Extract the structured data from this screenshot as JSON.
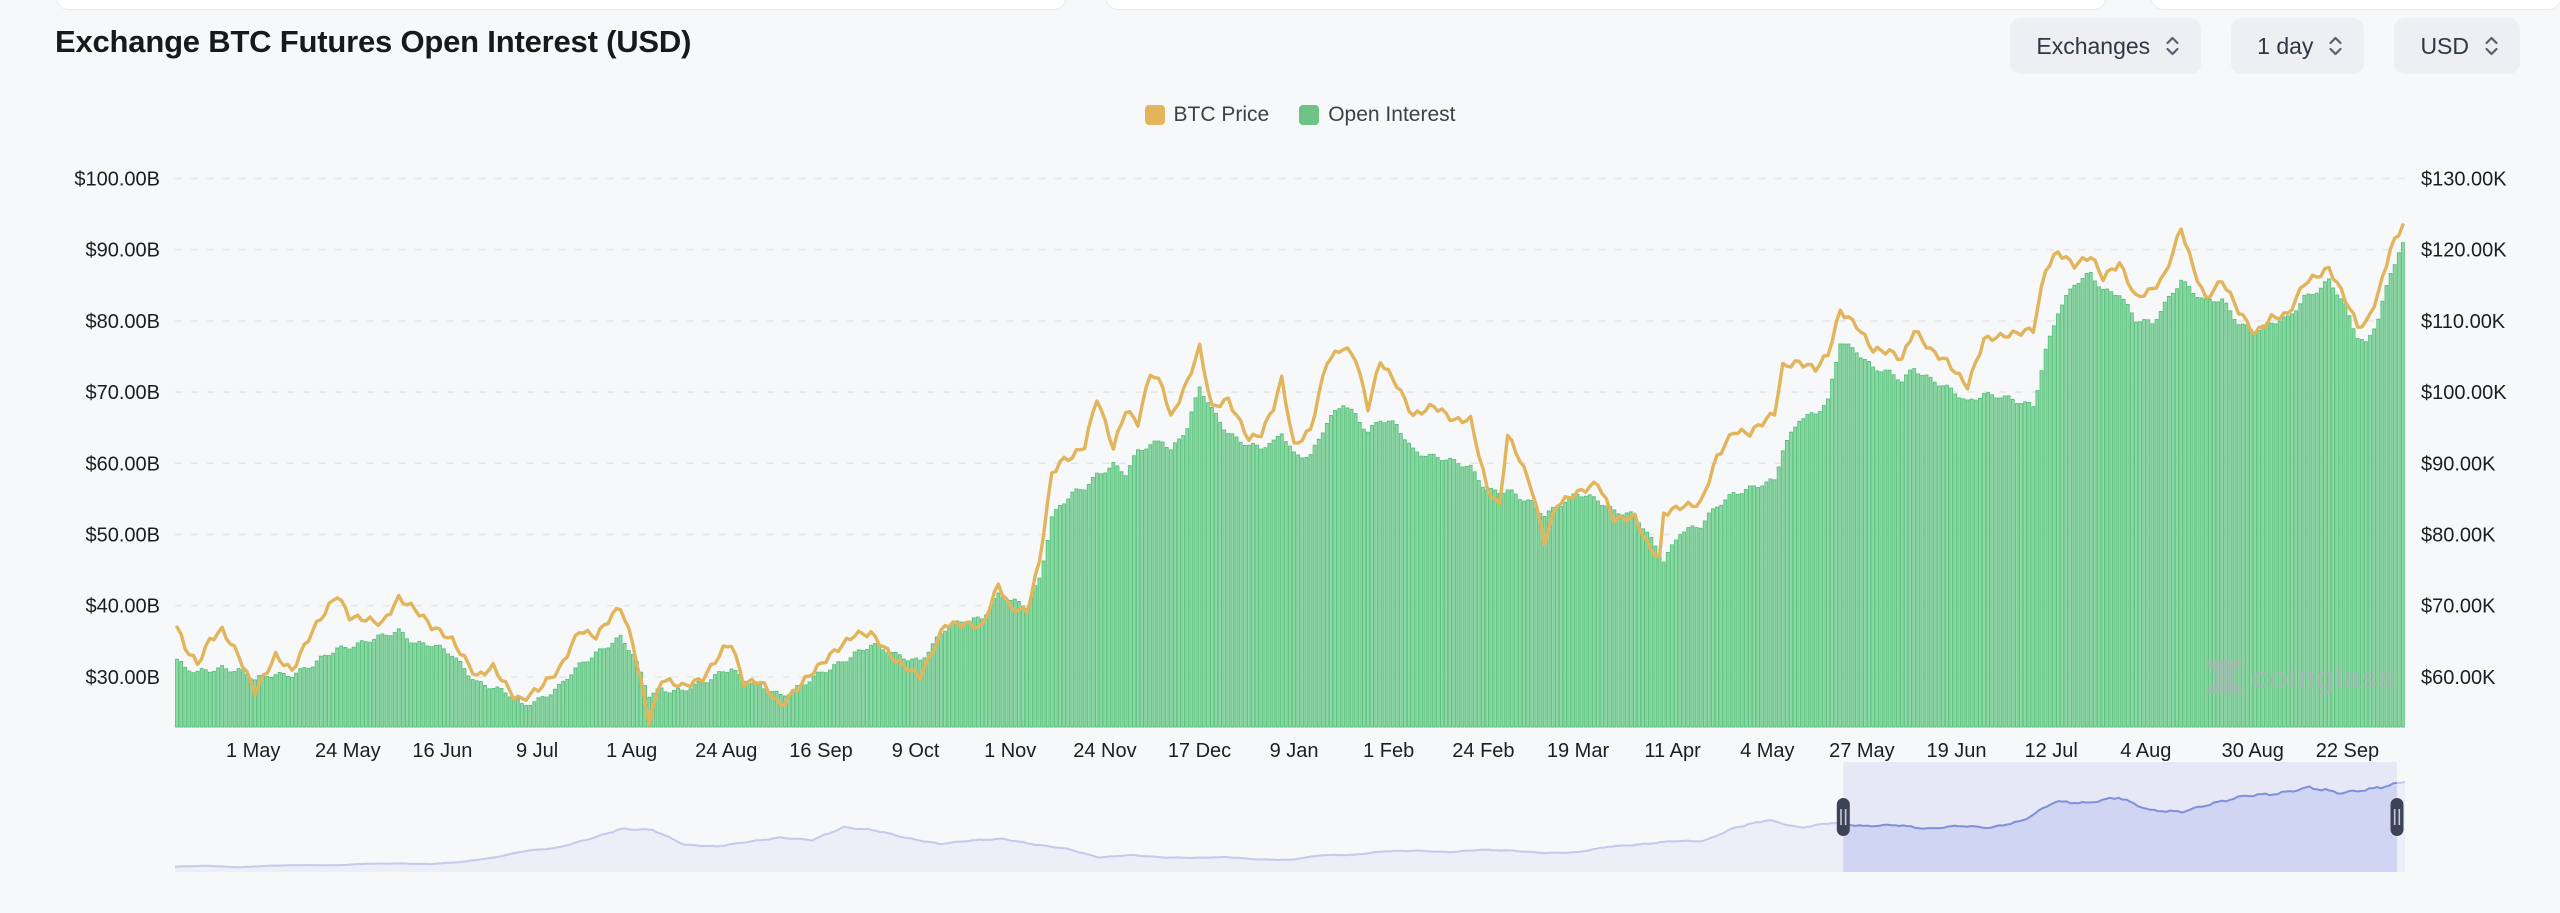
{
  "header": {
    "title": "Exchange BTC Futures Open Interest (USD)"
  },
  "controls": {
    "exchanges_label": "Exchanges",
    "timeframe_label": "1 day",
    "currency_label": "USD"
  },
  "legend": {
    "items": [
      {
        "label": "BTC Price",
        "color": "#e2b45c"
      },
      {
        "label": "Open Interest",
        "color": "#6ec487"
      }
    ]
  },
  "watermark": {
    "text": "coinglass"
  },
  "chart_data": {
    "type": "mixed",
    "title": "Exchange BTC Futures Open Interest (USD)",
    "grid": "dashed horizontal gridlines on",
    "legend_position": "top center",
    "left_axis": {
      "series": "Open Interest",
      "unit": "USD billions",
      "tick_labels": [
        "$100.00B",
        "$90.00B",
        "$80.00B",
        "$70.00B",
        "$60.00B",
        "$50.00B",
        "$40.00B",
        "$30.00B"
      ],
      "tick_values": [
        100,
        90,
        80,
        70,
        60,
        50,
        40,
        30
      ],
      "baseline_value": 23
    },
    "right_axis": {
      "series": "BTC Price",
      "unit": "USD thousands",
      "tick_labels": [
        "$130.00K",
        "$120.00K",
        "$110.00K",
        "$100.00K",
        "$90.00K",
        "$80.00K",
        "$70.00K",
        "$60.00K"
      ],
      "tick_values": [
        130,
        120,
        110,
        100,
        90,
        80,
        70,
        60
      ],
      "baseline_value": 53
    },
    "x_ticks": [
      {
        "label": "1 May",
        "date": "2024-05-01"
      },
      {
        "label": "24 May",
        "date": "2024-05-24"
      },
      {
        "label": "16 Jun",
        "date": "2024-06-16"
      },
      {
        "label": "9 Jul",
        "date": "2024-07-09"
      },
      {
        "label": "1 Aug",
        "date": "2024-08-01"
      },
      {
        "label": "24 Aug",
        "date": "2024-08-24"
      },
      {
        "label": "16 Sep",
        "date": "2024-09-16"
      },
      {
        "label": "9 Oct",
        "date": "2024-10-09"
      },
      {
        "label": "1 Nov",
        "date": "2024-11-01"
      },
      {
        "label": "24 Nov",
        "date": "2024-11-24"
      },
      {
        "label": "17 Dec",
        "date": "2024-12-17"
      },
      {
        "label": "9 Jan",
        "date": "2025-01-09"
      },
      {
        "label": "1 Feb",
        "date": "2025-02-01"
      },
      {
        "label": "24 Feb",
        "date": "2025-02-24"
      },
      {
        "label": "19 Mar",
        "date": "2025-03-19"
      },
      {
        "label": "11 Apr",
        "date": "2025-04-11"
      },
      {
        "label": "4 May",
        "date": "2025-05-04"
      },
      {
        "label": "27 May",
        "date": "2025-05-27"
      },
      {
        "label": "19 Jun",
        "date": "2025-06-19"
      },
      {
        "label": "12 Jul",
        "date": "2025-07-12"
      },
      {
        "label": "4 Aug",
        "date": "2025-08-04"
      },
      {
        "label": "30 Aug",
        "date": "2025-08-30"
      },
      {
        "label": "22 Sep",
        "date": "2025-09-22"
      }
    ],
    "series": [
      {
        "name": "BTC Price",
        "type": "line",
        "axis": "right",
        "color": "#e2b45c",
        "unit": "K USD"
      },
      {
        "name": "Open Interest",
        "type": "bar",
        "axis": "left",
        "color": "#6ec487",
        "stroke": "#58bf7d",
        "unit": "B USD"
      }
    ],
    "dates": [
      "2024-04-12",
      "2024-04-14",
      "2024-04-17",
      "2024-04-20",
      "2024-04-23",
      "2024-04-27",
      "2024-05-01",
      "2024-05-06",
      "2024-05-10",
      "2024-05-15",
      "2024-05-21",
      "2024-05-24",
      "2024-05-28",
      "2024-06-01",
      "2024-06-05",
      "2024-06-09",
      "2024-06-13",
      "2024-06-18",
      "2024-06-24",
      "2024-06-28",
      "2024-07-03",
      "2024-07-05",
      "2024-07-09",
      "2024-07-14",
      "2024-07-19",
      "2024-07-23",
      "2024-07-27",
      "2024-07-29",
      "2024-08-01",
      "2024-08-05",
      "2024-08-08",
      "2024-08-13",
      "2024-08-18",
      "2024-08-23",
      "2024-08-25",
      "2024-08-28",
      "2024-09-01",
      "2024-09-06",
      "2024-09-13",
      "2024-09-18",
      "2024-09-24",
      "2024-09-28",
      "2024-10-04",
      "2024-10-10",
      "2024-10-16",
      "2024-10-21",
      "2024-10-25",
      "2024-10-29",
      "2024-11-01",
      "2024-11-05",
      "2024-11-08",
      "2024-11-11",
      "2024-11-13",
      "2024-11-16",
      "2024-11-19",
      "2024-11-22",
      "2024-11-26",
      "2024-11-29",
      "2024-12-02",
      "2024-12-05",
      "2024-12-08",
      "2024-12-10",
      "2024-12-14",
      "2024-12-17",
      "2024-12-20",
      "2024-12-24",
      "2024-12-29",
      "2025-01-01",
      "2025-01-04",
      "2025-01-06",
      "2025-01-09",
      "2025-01-13",
      "2025-01-17",
      "2025-01-21",
      "2025-01-24",
      "2025-01-27",
      "2025-01-30",
      "2025-02-03",
      "2025-02-07",
      "2025-02-12",
      "2025-02-17",
      "2025-02-21",
      "2025-02-25",
      "2025-02-28",
      "2025-03-02",
      "2025-03-05",
      "2025-03-08",
      "2025-03-11",
      "2025-03-14",
      "2025-03-19",
      "2025-03-24",
      "2025-03-28",
      "2025-04-02",
      "2025-04-05",
      "2025-04-08",
      "2025-04-09",
      "2025-04-13",
      "2025-04-18",
      "2025-04-22",
      "2025-04-26",
      "2025-04-30",
      "2025-05-04",
      "2025-05-06",
      "2025-05-08",
      "2025-05-12",
      "2025-05-16",
      "2025-05-19",
      "2025-05-22",
      "2025-05-26",
      "2025-05-30",
      "2025-06-03",
      "2025-06-06",
      "2025-06-09",
      "2025-06-13",
      "2025-06-17",
      "2025-06-22",
      "2025-06-26",
      "2025-06-30",
      "2025-07-04",
      "2025-07-08",
      "2025-07-11",
      "2025-07-14",
      "2025-07-18",
      "2025-07-22",
      "2025-07-25",
      "2025-07-29",
      "2025-08-02",
      "2025-08-06",
      "2025-08-09",
      "2025-08-13",
      "2025-08-16",
      "2025-08-19",
      "2025-08-23",
      "2025-08-27",
      "2025-08-31",
      "2025-09-04",
      "2025-09-08",
      "2025-09-12",
      "2025-09-16",
      "2025-09-18",
      "2025-09-22",
      "2025-09-25",
      "2025-09-27",
      "2025-09-30",
      "2025-10-03",
      "2025-10-06"
    ],
    "btc_price_k": [
      67,
      64,
      61.5,
      64.9,
      66.4,
      63.1,
      58.2,
      63.2,
      60.8,
      66.2,
      71.4,
      68.5,
      68.4,
      67.8,
      71.1,
      69.3,
      66.8,
      65.1,
      60.3,
      61.7,
      57.3,
      56.6,
      58,
      60.8,
      66.7,
      66,
      68.9,
      69.9,
      64.6,
      53.4,
      59.4,
      58.7,
      60,
      64.1,
      64.8,
      59,
      59.1,
      55.7,
      60.5,
      63.3,
      65.9,
      65.8,
      62.1,
      60.3,
      67.6,
      67.4,
      66.7,
      72.7,
      69.5,
      69.4,
      76.5,
      88.7,
      90.4,
      91,
      92.3,
      98.9,
      91.9,
      97.4,
      95.8,
      103,
      101.2,
      96.6,
      101.4,
      106.1,
      97.5,
      98.7,
      93.5,
      94.4,
      98.2,
      102.1,
      92.5,
      94.5,
      104,
      106.1,
      104.8,
      98,
      104.7,
      101.3,
      96.6,
      97.8,
      95.8,
      96.2,
      86.8,
      84.3,
      94.2,
      90.6,
      86.1,
      78.7,
      83.9,
      85.8,
      87.5,
      82.4,
      82.5,
      78.5,
      76.3,
      82.6,
      83.7,
      84.5,
      91.2,
      94.7,
      94.2,
      95.9,
      96.8,
      103.3,
      104.1,
      103.5,
      105.6,
      111.7,
      109.4,
      105.7,
      105.4,
      104.4,
      108.7,
      106.1,
      104.6,
      100.9,
      107.2,
      107.5,
      108.1,
      108.9,
      117.5,
      120,
      118,
      119,
      115.8,
      117.8,
      113.2,
      114.6,
      116.7,
      123.3,
      117.4,
      112.9,
      115.4,
      111.2,
      108.2,
      110.7,
      111.2,
      115.4,
      116.4,
      117.1,
      112.8,
      109.2,
      109.6,
      114,
      120.5,
      123.5
    ],
    "open_interest_b": [
      32.5,
      31,
      30.5,
      31,
      31.5,
      31,
      29.5,
      30.5,
      30.5,
      31.5,
      34,
      34.5,
      35,
      35.5,
      36.5,
      35,
      34.5,
      33,
      29.5,
      28.5,
      27,
      26,
      27,
      28.5,
      31.5,
      33.5,
      35,
      35.5,
      33,
      27.5,
      28.5,
      28,
      29,
      31,
      31.5,
      29.5,
      28.5,
      27.5,
      29.5,
      31,
      33.5,
      34.5,
      33,
      32.5,
      36.5,
      38,
      38.5,
      41.5,
      40.5,
      40,
      44,
      52.5,
      54,
      55.5,
      56.5,
      58.5,
      60,
      58.5,
      61.5,
      62.5,
      63.5,
      62,
      65,
      70.5,
      67.5,
      64.5,
      62.5,
      62,
      62.8,
      64.5,
      61.5,
      61,
      65.5,
      68.5,
      67,
      64.5,
      66,
      65.2,
      62,
      61,
      60,
      59.5,
      56.5,
      56,
      56,
      55,
      54.5,
      53,
      54,
      55.5,
      55,
      53.5,
      52.5,
      50,
      47.5,
      46.5,
      50.5,
      51,
      54,
      56,
      56.5,
      57,
      57.5,
      62,
      66.5,
      67,
      68.5,
      77,
      76,
      73.5,
      72.5,
      71.5,
      73.5,
      72,
      70.5,
      68.5,
      70,
      69.5,
      68.5,
      68,
      76,
      81.5,
      85,
      86.5,
      84.5,
      84,
      80,
      79.5,
      82.5,
      86,
      84,
      82.5,
      83,
      80,
      78.5,
      79.5,
      80.5,
      83.5,
      84.5,
      85.5,
      82,
      78,
      77,
      80.5,
      86.5,
      91
    ],
    "navigator": {
      "series": "BTC Price (full history)",
      "start_month": "2019-12",
      "end_month": "2025-10",
      "monthly_btc_price_k": [
        7.3,
        8.5,
        6.4,
        8.6,
        9.5,
        9.1,
        11.3,
        11.7,
        10.8,
        13.8,
        19.7,
        28.9,
        33.1,
        45.2,
        58.9,
        57.7,
        37.3,
        35,
        41.5,
        47.1,
        43.8,
        61.3,
        57,
        46.2,
        38.5,
        43.2,
        45.5,
        37.6,
        31.8,
        19.9,
        23.3,
        20,
        19.4,
        20.5,
        17.2,
        16.5,
        23.1,
        23.5,
        28.5,
        29.2,
        27.2,
        30.5,
        29.2,
        26,
        27,
        34.7,
        37.7,
        42.3,
        42.6,
        61.2,
        71.3,
        60.6,
        67.5,
        62.7,
        64.6,
        59.1,
        63.3,
        60.6,
        70.2,
        96.4,
        94.4,
        102.4,
        84.4,
        82.5,
        94.2,
        104.6,
        107.2,
        115.8,
        108.2,
        114,
        123.5
      ],
      "selection": {
        "start_date": "2024-04-12",
        "end_date": "2025-10-06"
      }
    },
    "colors": {
      "background": "#f7f8f9",
      "gridline": "#e3e5e8",
      "axis_text": "#1b1e21",
      "bar_fill": "#8ed9a4",
      "bar_stroke": "#58bf7d",
      "line": "#e2b45c",
      "nav_line": "#8392da",
      "nav_fill": "#dde2f6",
      "nav_selection": "rgba(108,122,224,0.12)",
      "handle": "#3d4254"
    }
  }
}
